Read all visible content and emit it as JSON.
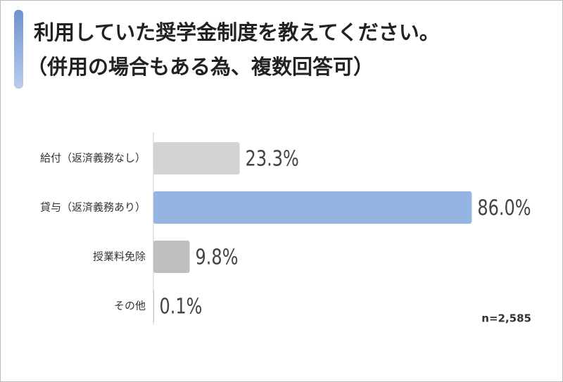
{
  "chart_data": {
    "type": "hbar",
    "title": "利用していた奨学金制度を教えてください。",
    "subtitle": "（併用の場合もある為、複数回答可）",
    "categories": [
      "給付（返済義務なし）",
      "貸与（返済義務あり）",
      "授業料免除",
      "その他"
    ],
    "values": [
      23.3,
      86.0,
      9.8,
      0.1
    ],
    "value_labels": [
      "23.3%",
      "86.0%",
      "9.8%",
      "0.1%"
    ],
    "colors": [
      "#d3d3d3",
      "#94b4e1",
      "#bfbfbf",
      "#8c8c8c"
    ],
    "annotation": "n=2,585"
  }
}
